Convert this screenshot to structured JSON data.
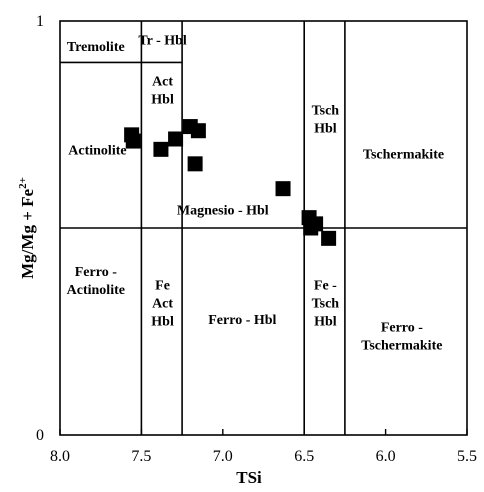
{
  "chart_data": {
    "type": "scatter",
    "xlabel": "TSi",
    "ylabel": "Mg/Mg + Fe",
    "ylabel_superscript": "2+",
    "xlim": [
      8.0,
      5.5
    ],
    "ylim": [
      0,
      1
    ],
    "x_ticks": [
      "8.0",
      "7.5",
      "7.0",
      "6.5",
      "6.0",
      "5.5"
    ],
    "x_tick_values": [
      8.0,
      7.5,
      7.0,
      6.5,
      6.0,
      5.5
    ],
    "y_ticks": [
      "0",
      "1"
    ],
    "y_tick_values": [
      0,
      1
    ],
    "boundaries": {
      "horizontal_y": 0.5,
      "tremolite_top_y": 0.9,
      "vertical_x": [
        7.5,
        7.25,
        6.5,
        6.25
      ]
    },
    "fields": [
      {
        "lines": [
          "Tremolite"
        ],
        "x": 7.78,
        "y": 0.94
      },
      {
        "lines": [
          "Tr - Hbl"
        ],
        "x": 7.37,
        "y": 0.955
      },
      {
        "lines": [
          "Act",
          "Hbl"
        ],
        "x": 7.37,
        "y": 0.835
      },
      {
        "lines": [
          "Actinolite"
        ],
        "x": 7.77,
        "y": 0.69
      },
      {
        "lines": [
          "Magnesio - Hbl"
        ],
        "x": 7.0,
        "y": 0.545
      },
      {
        "lines": [
          "Tsch",
          "Hbl"
        ],
        "x": 6.37,
        "y": 0.765
      },
      {
        "lines": [
          "Tschermakite"
        ],
        "x": 5.89,
        "y": 0.68
      },
      {
        "lines": [
          "Ferro -",
          "Actinolite"
        ],
        "x": 7.78,
        "y": 0.375
      },
      {
        "lines": [
          "Fe",
          "Act",
          "Hbl"
        ],
        "x": 7.37,
        "y": 0.32
      },
      {
        "lines": [
          "Ferro - Hbl"
        ],
        "x": 6.88,
        "y": 0.28
      },
      {
        "lines": [
          "Fe -",
          "Tsch",
          "Hbl"
        ],
        "x": 6.37,
        "y": 0.32
      },
      {
        "lines": [
          "Ferro -",
          "Tschermakite"
        ],
        "x": 5.9,
        "y": 0.24
      }
    ],
    "series": [
      {
        "marker": "square",
        "color": "#000000",
        "points": [
          {
            "x": 7.56,
            "y": 0.725
          },
          {
            "x": 7.55,
            "y": 0.71
          },
          {
            "x": 7.38,
            "y": 0.69
          },
          {
            "x": 7.29,
            "y": 0.715
          },
          {
            "x": 7.2,
            "y": 0.745
          },
          {
            "x": 7.15,
            "y": 0.735
          },
          {
            "x": 7.17,
            "y": 0.655
          },
          {
            "x": 6.63,
            "y": 0.595
          },
          {
            "x": 6.47,
            "y": 0.525
          },
          {
            "x": 6.46,
            "y": 0.5
          },
          {
            "x": 6.43,
            "y": 0.51
          },
          {
            "x": 6.35,
            "y": 0.475
          }
        ]
      }
    ]
  }
}
